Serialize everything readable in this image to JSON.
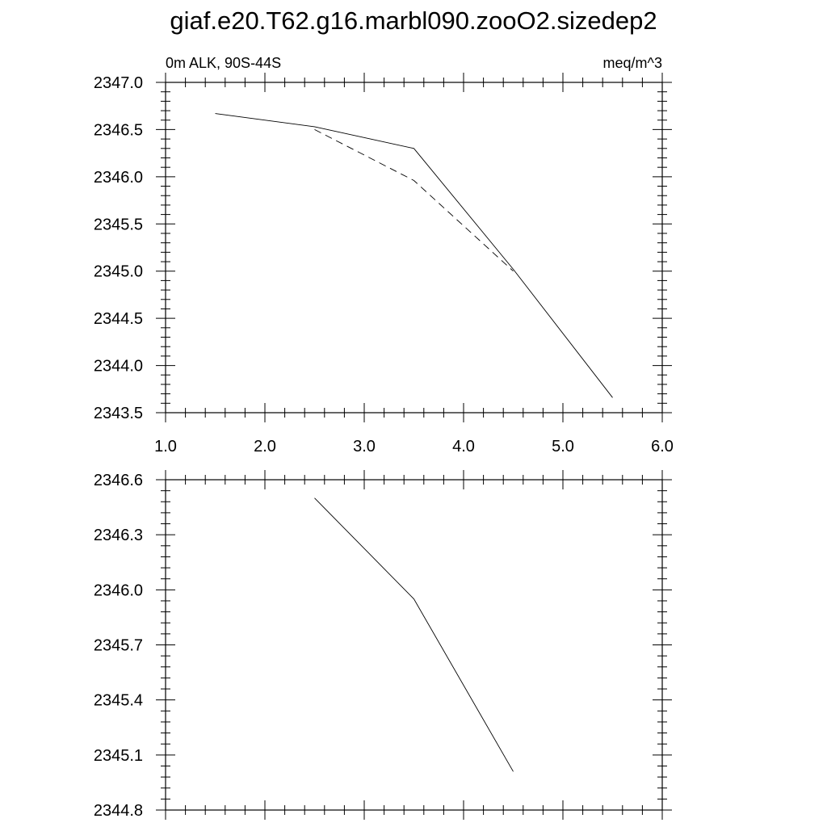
{
  "title": "giaf.e20.T62.g16.marbl090.zooO2.sizedep2",
  "chart_data": [
    {
      "type": "line",
      "left_label": "0m ALK, 90S-44S",
      "right_label": "meq/m^3",
      "xlim": [
        1.0,
        6.0
      ],
      "ylim": [
        2343.5,
        2347.0
      ],
      "x_ticks": [
        "1.0",
        "2.0",
        "3.0",
        "4.0",
        "5.0",
        "6.0"
      ],
      "y_ticks": [
        "2343.5",
        "2344.0",
        "2344.5",
        "2345.0",
        "2345.5",
        "2346.0",
        "2346.5",
        "2347.0"
      ],
      "series": [
        {
          "style": "solid",
          "color": "#000000",
          "x": [
            1.5,
            2.5,
            3.5,
            4.5,
            5.5
          ],
          "y": [
            2346.67,
            2346.53,
            2346.3,
            2345.02,
            2343.66
          ]
        },
        {
          "style": "dashed",
          "color": "#000000",
          "x": [
            2.5,
            3.5,
            4.5
          ],
          "y": [
            2346.5,
            2345.96,
            2345.0
          ]
        }
      ]
    },
    {
      "type": "line",
      "xlim": [
        1.0,
        6.0
      ],
      "ylim": [
        2344.8,
        2346.6
      ],
      "y_ticks": [
        "2344.8",
        "2345.1",
        "2345.4",
        "2345.7",
        "2346.0",
        "2346.3",
        "2346.6"
      ],
      "series": [
        {
          "style": "solid",
          "color": "#000000",
          "x": [
            2.5,
            3.5,
            4.5
          ],
          "y": [
            2346.5,
            2345.95,
            2345.01
          ]
        }
      ]
    }
  ]
}
